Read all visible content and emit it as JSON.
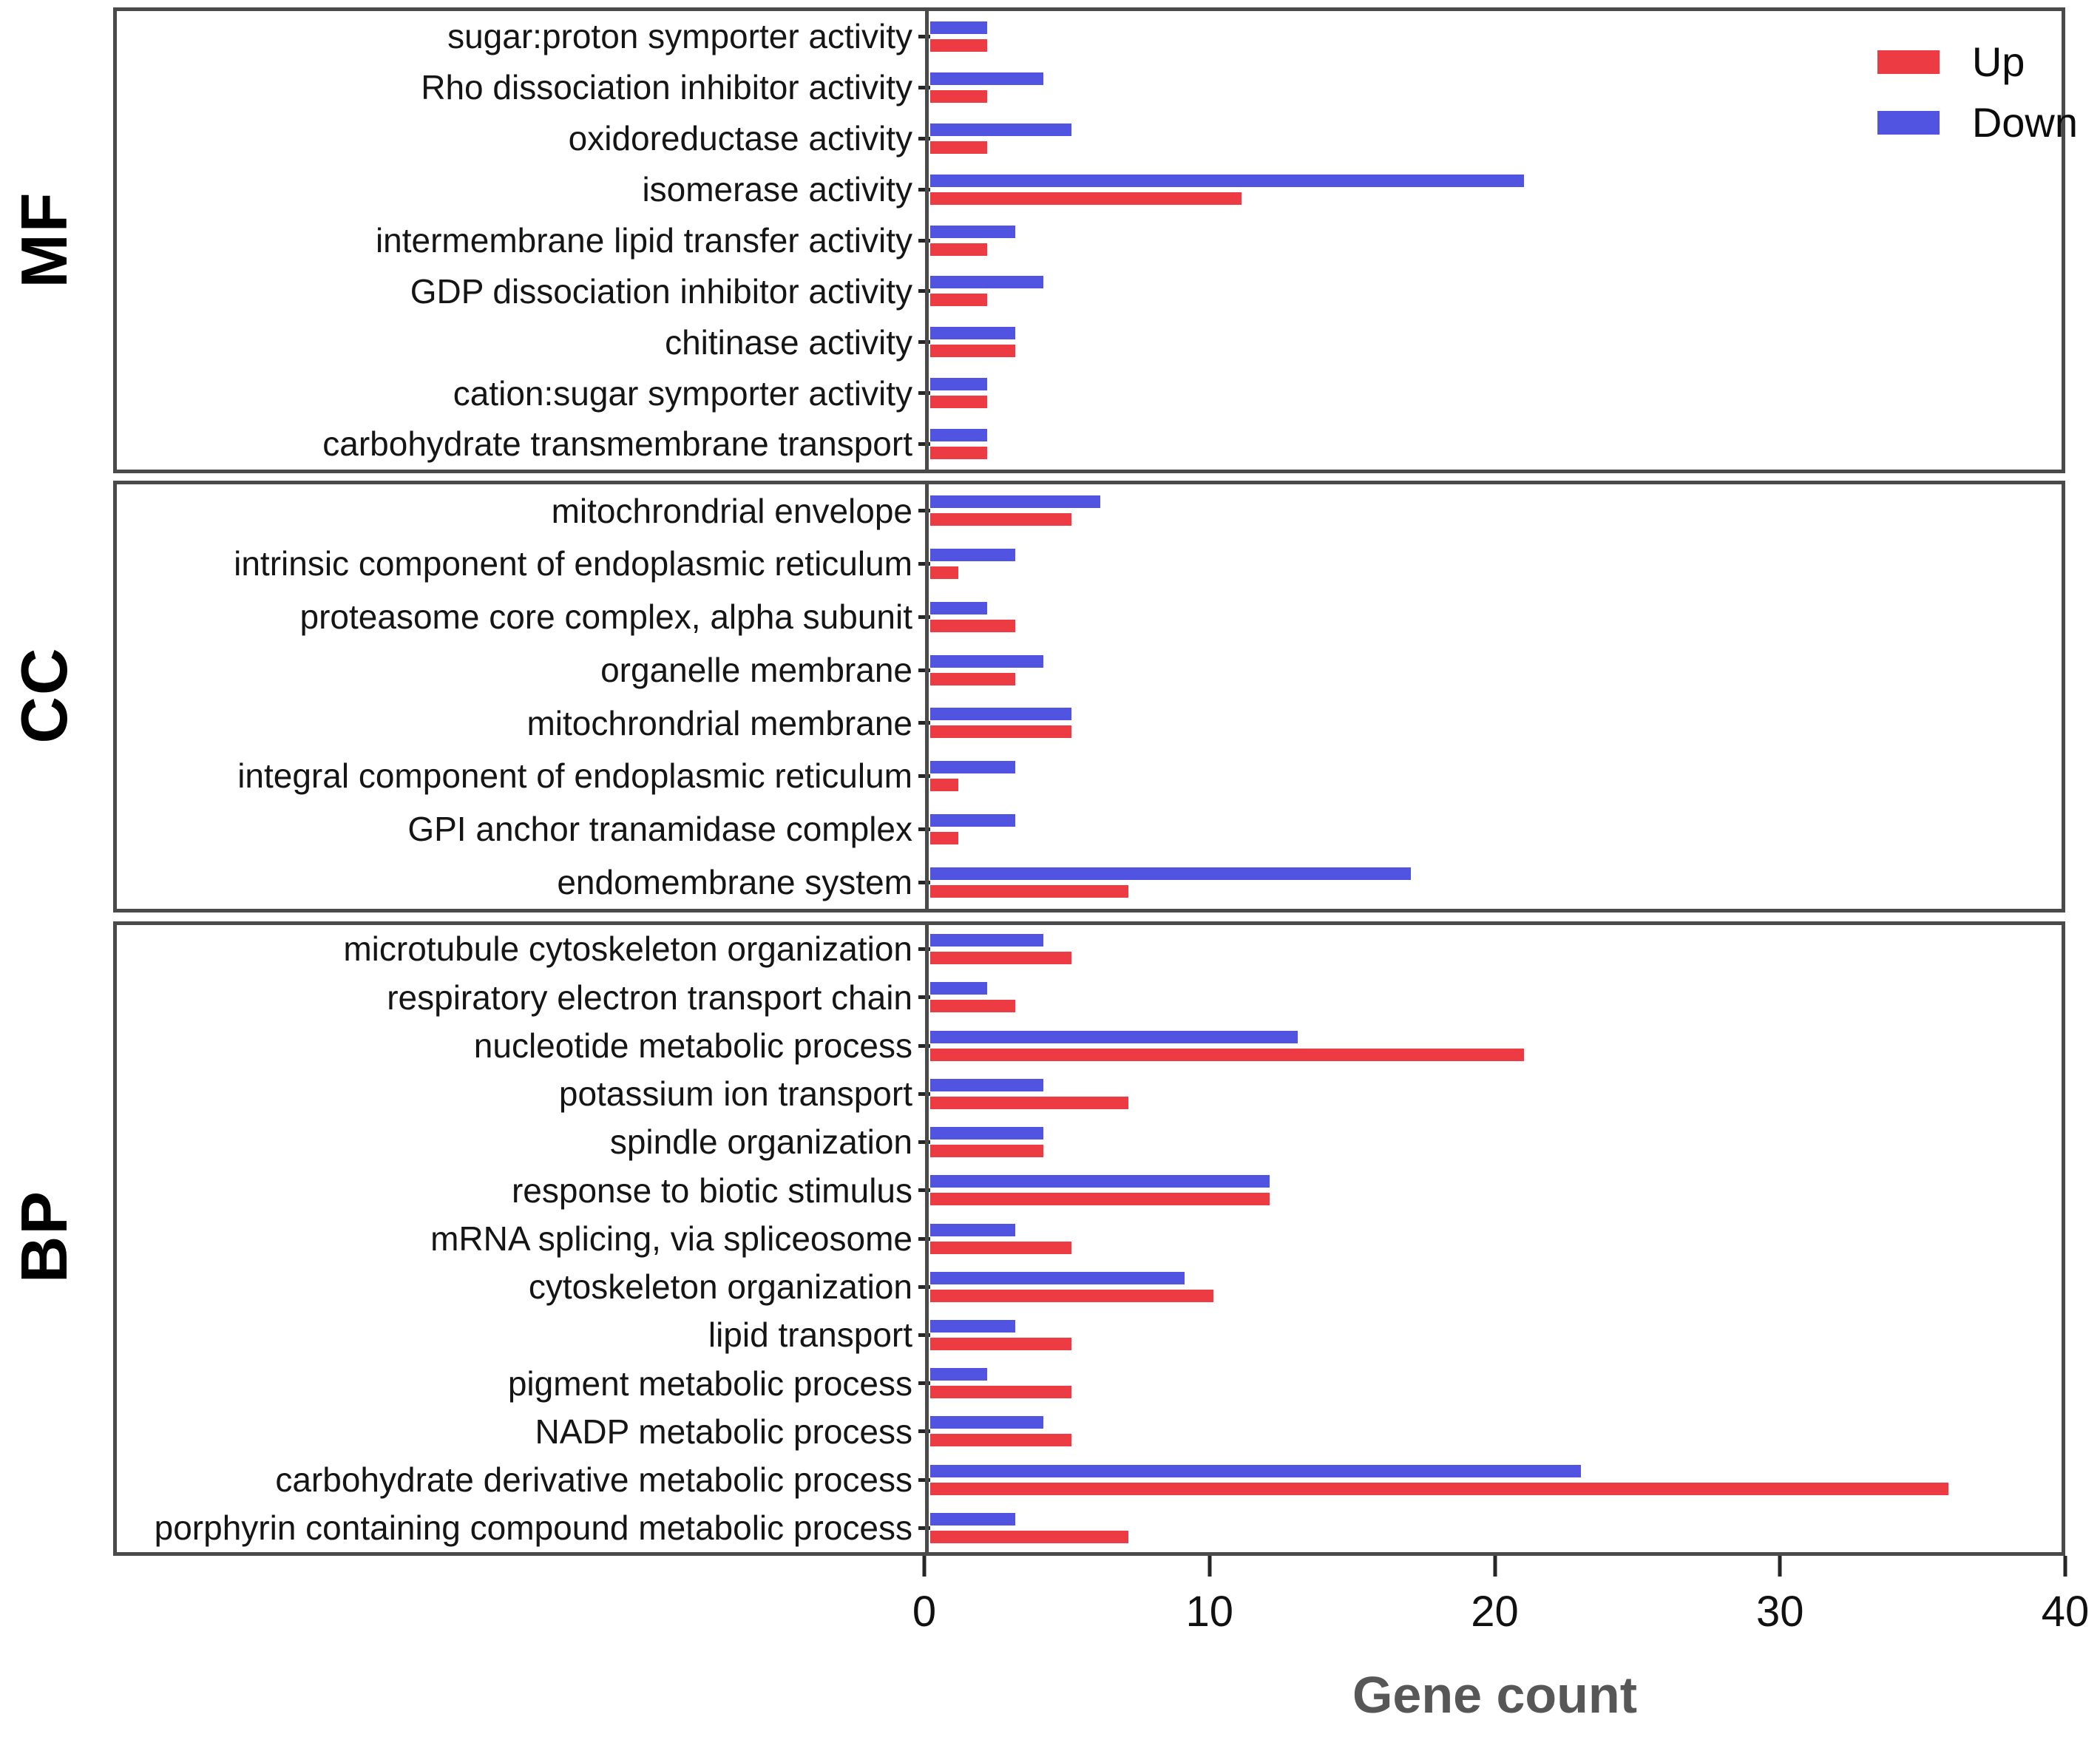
{
  "chart_data": {
    "type": "bar",
    "orientation": "horizontal",
    "title": "",
    "xlabel": "Gene count",
    "xlim": [
      0,
      40
    ],
    "x_ticks": [
      0,
      10,
      20,
      30,
      40
    ],
    "grid": false,
    "axis_color": "#4a4a4a",
    "text_color": "#151515",
    "xlabel_color": "#575757",
    "bar_order_top_to_bottom_within_category": [
      "Down",
      "Up"
    ],
    "legend": {
      "position": "top-right inside MF panel",
      "entries": [
        {
          "label": "Up",
          "color": "#ec3b43"
        },
        {
          "label": "Down",
          "color": "#5153e1"
        }
      ]
    },
    "facets": [
      {
        "label": "MF",
        "categories": [
          "sugar:proton symporter activity",
          "Rho dissociation inhibitor activity",
          "oxidoreductase activity",
          "isomerase activity",
          "intermembrane lipid transfer activity",
          "GDP dissociation inhibitor activity",
          "chitinase activity",
          "cation:sugar symporter activity",
          "carbohydrate transmembrane transport"
        ],
        "series": [
          {
            "name": "Up",
            "color": "#ec3b43",
            "values": [
              2,
              2,
              2,
              11,
              2,
              2,
              3,
              2,
              2
            ]
          },
          {
            "name": "Down",
            "color": "#5153e1",
            "values": [
              2,
              4,
              5,
              21,
              3,
              4,
              3,
              2,
              2
            ]
          }
        ]
      },
      {
        "label": "CC",
        "categories": [
          "mitochrondrial envelope",
          "intrinsic component of endoplasmic reticulum",
          "proteasome core complex, alpha subunit",
          "organelle membrane",
          "mitochrondrial membrane",
          "integral component of endoplasmic reticulum",
          "GPI anchor tranamidase complex",
          "endomembrane system"
        ],
        "series": [
          {
            "name": "Up",
            "color": "#ec3b43",
            "values": [
              5,
              1,
              3,
              3,
              5,
              1,
              1,
              7
            ]
          },
          {
            "name": "Down",
            "color": "#5153e1",
            "values": [
              6,
              3,
              2,
              4,
              5,
              3,
              3,
              17
            ]
          }
        ]
      },
      {
        "label": "BP",
        "categories": [
          "microtubule cytoskeleton organization",
          "respiratory electron transport chain",
          "nucleotide metabolic process",
          "potassium ion transport",
          "spindle organization",
          "response to biotic stimulus",
          "mRNA splicing, via spliceosome",
          "cytoskeleton organization",
          "lipid transport",
          "pigment metabolic process",
          "NADP metabolic process",
          "carbohydrate derivative metabolic process",
          "porphyrin containing compound metabolic process"
        ],
        "series": [
          {
            "name": "Up",
            "color": "#ec3b43",
            "values": [
              5,
              3,
              21,
              7,
              4,
              12,
              5,
              10,
              5,
              5,
              5,
              36,
              7
            ]
          },
          {
            "name": "Down",
            "color": "#5153e1",
            "values": [
              4,
              2,
              13,
              4,
              4,
              12,
              3,
              9,
              3,
              2,
              4,
              23,
              3
            ]
          }
        ]
      }
    ]
  }
}
